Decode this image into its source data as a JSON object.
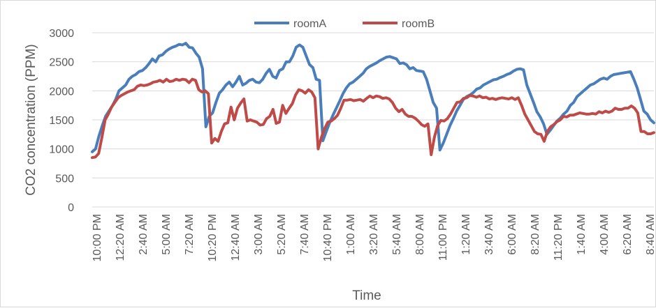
{
  "chart_data": {
    "type": "line",
    "title": "",
    "xlabel": "Time",
    "ylabel": "CO2 concentration (PPM)",
    "ylim": [
      0,
      3000
    ],
    "yticks": [
      "0",
      "500",
      "1000",
      "1500",
      "2000",
      "2500",
      "3000"
    ],
    "grid": "horizontal",
    "legend_position": "top",
    "x_tick_labels": [
      "10:00 PM",
      "12:20 AM",
      "2:40 AM",
      "5:00 AM",
      "7:20 AM",
      "10:20 PM",
      "12:40 AM",
      "3:00 AM",
      "5:20 AM",
      "7:40 AM",
      "10:40 PM",
      "1:00 AM",
      "3:20 AM",
      "5:40 AM",
      "8:00 AM",
      "11:00 PM",
      "1:20 AM",
      "3:40 AM",
      "6:00 AM",
      "8:20 AM",
      "11:20 PM",
      "1:40 AM",
      "4:00 AM",
      "6:20 AM",
      "8:40 AM"
    ],
    "series": [
      {
        "name": "roomA",
        "color": "#4a7ebb",
        "values": [
          950,
          1000,
          1220,
          1400,
          1560,
          1650,
          1740,
          1850,
          2000,
          2050,
          2100,
          2200,
          2250,
          2280,
          2330,
          2350,
          2400,
          2470,
          2550,
          2500,
          2600,
          2620,
          2680,
          2720,
          2750,
          2770,
          2800,
          2790,
          2820,
          2750,
          2740,
          2650,
          2580,
          2380,
          1380,
          1560,
          1620,
          1800,
          1960,
          2020,
          2100,
          2150,
          2070,
          2150,
          2250,
          2100,
          2130,
          2180,
          2200,
          2150,
          2140,
          2200,
          2300,
          2370,
          2250,
          2220,
          2350,
          2380,
          2500,
          2500,
          2600,
          2750,
          2790,
          2750,
          2600,
          2450,
          2400,
          2200,
          2180,
          1140,
          1300,
          1450,
          1580,
          1700,
          1820,
          1950,
          2050,
          2120,
          2150,
          2200,
          2250,
          2300,
          2380,
          2420,
          2450,
          2480,
          2520,
          2550,
          2580,
          2590,
          2570,
          2550,
          2470,
          2480,
          2450,
          2380,
          2400,
          2350,
          2340,
          2330,
          2200,
          2000,
          1800,
          1700,
          980,
          1100,
          1250,
          1400,
          1520,
          1650,
          1750,
          1850,
          1900,
          1930,
          1970,
          2030,
          2050,
          2100,
          2130,
          2160,
          2190,
          2200,
          2230,
          2250,
          2280,
          2300,
          2340,
          2370,
          2380,
          2360,
          2100,
          1950,
          1800,
          1640,
          1550,
          1430,
          1250,
          1320,
          1400,
          1480,
          1530,
          1600,
          1650,
          1750,
          1800,
          1900,
          1950,
          2000,
          2050,
          2100,
          2120,
          2160,
          2200,
          2220,
          2200,
          2250,
          2280,
          2290,
          2300,
          2310,
          2320,
          2330,
          2200,
          2050,
          1850,
          1650,
          1600,
          1500,
          1450
        ]
      },
      {
        "name": "roomB",
        "color": "#be4b48",
        "values": [
          850,
          860,
          920,
          1200,
          1500,
          1600,
          1720,
          1800,
          1880,
          1920,
          1950,
          1980,
          2000,
          2020,
          2080,
          2100,
          2090,
          2100,
          2120,
          2150,
          2160,
          2180,
          2150,
          2200,
          2160,
          2170,
          2200,
          2180,
          2200,
          2190,
          2140,
          2200,
          2180,
          2020,
          1980,
          2000,
          1950,
          1100,
          1180,
          1130,
          1300,
          1430,
          1450,
          1720,
          1500,
          1700,
          1790,
          1860,
          1480,
          1500,
          1480,
          1460,
          1410,
          1420,
          1520,
          1560,
          1680,
          1440,
          1460,
          1750,
          1610,
          1700,
          1780,
          1930,
          2020,
          2000,
          1960,
          2020,
          1980,
          1880,
          1000,
          1200,
          1350,
          1460,
          1480,
          1520,
          1580,
          1700,
          1840,
          1840,
          1850,
          1830,
          1840,
          1850,
          1820,
          1870,
          1910,
          1880,
          1910,
          1900,
          1870,
          1880,
          1860,
          1800,
          1700,
          1640,
          1680,
          1600,
          1560,
          1560,
          1530,
          1480,
          1420,
          1390,
          1430,
          900,
          1200,
          1400,
          1490,
          1480,
          1520,
          1600,
          1700,
          1800,
          1810,
          1870,
          1880,
          1920,
          1910,
          1890,
          1910,
          1880,
          1890,
          1860,
          1870,
          1850,
          1870,
          1880,
          1870,
          1860,
          1880,
          1850,
          1880,
          1750,
          1600,
          1500,
          1400,
          1300,
          1260,
          1250,
          1130,
          1300,
          1380,
          1420,
          1470,
          1500,
          1560,
          1550,
          1580,
          1580,
          1600,
          1620,
          1610,
          1600,
          1600,
          1610,
          1600,
          1640,
          1620,
          1650,
          1630,
          1650,
          1700,
          1680,
          1680,
          1700,
          1700,
          1740,
          1700,
          1620,
          1300,
          1300,
          1260,
          1260,
          1280
        ]
      }
    ]
  }
}
